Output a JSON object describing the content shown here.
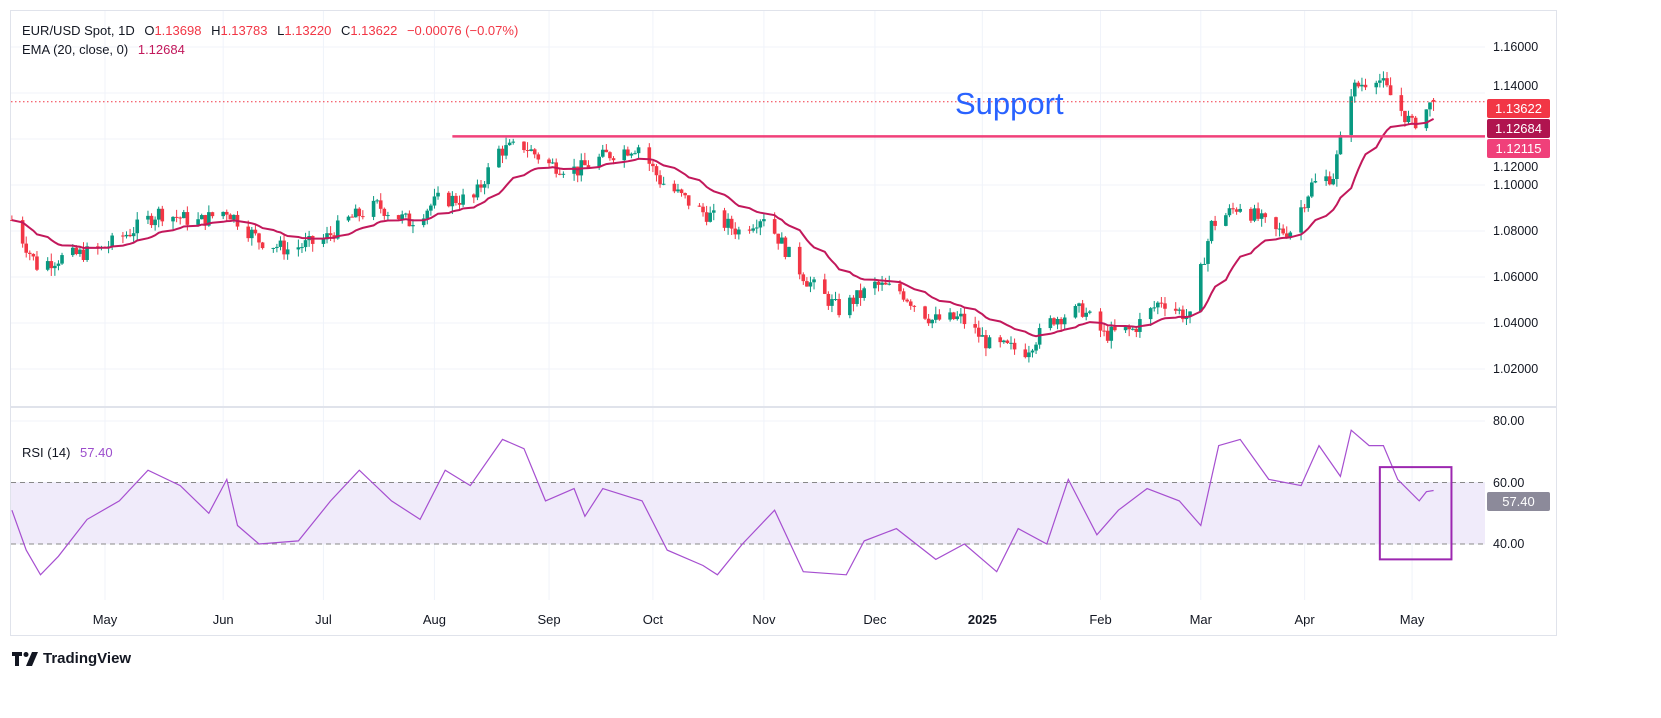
{
  "header": {
    "symbol": "EUR/USD Spot, 1D",
    "open_key": "O",
    "open": "1.13698",
    "high_key": "H",
    "high": "1.13783",
    "low_key": "L",
    "low": "1.13220",
    "close_key": "C",
    "close": "1.13622",
    "change": "−0.00076 (−0.07%)",
    "ema_label": "EMA (20, close, 0)",
    "ema_value": "1.12684",
    "rsi_label": "RSI (14)",
    "rsi_value": "57.40"
  },
  "annotation": {
    "support_text": "Support",
    "support_level": "1.12115"
  },
  "price_tags": {
    "last": "1.13622",
    "ema": "1.12684",
    "support": "1.12115"
  },
  "rsi_tags": {
    "value": "57.40"
  },
  "branding": {
    "logo": "TradingView"
  },
  "colors": {
    "up": "#089981",
    "down": "#f23645",
    "ema": "#c2185b",
    "support": "#f0407a",
    "rsi": "#a64fd0",
    "rsi_band": "#f0ebfa",
    "highlight_box": "#9c27b0",
    "support_text": "#2962ff"
  },
  "chart_data": [
    {
      "type": "candlestick",
      "title": "EUR/USD Spot, 1D",
      "ylim": [
        1.006,
        1.172
      ],
      "y_ticks": [
        "1.16000",
        "1.14000",
        "1.12000",
        "1.10000",
        "1.08000",
        "1.06000",
        "1.04000",
        "1.02000"
      ],
      "x_ticks": [
        {
          "date": "2024-05-01",
          "label": "May"
        },
        {
          "date": "2024-06-03",
          "label": "Jun"
        },
        {
          "date": "2024-07-01",
          "label": "Jul"
        },
        {
          "date": "2024-08-01",
          "label": "Aug"
        },
        {
          "date": "2024-09-02",
          "label": "Sep"
        },
        {
          "date": "2024-10-01",
          "label": "Oct"
        },
        {
          "date": "2024-11-01",
          "label": "Nov"
        },
        {
          "date": "2024-12-02",
          "label": "Dec"
        },
        {
          "date": "2025-01-01",
          "label": "2025"
        },
        {
          "date": "2025-02-03",
          "label": "Feb"
        },
        {
          "date": "2025-03-03",
          "label": "Mar"
        },
        {
          "date": "2025-04-01",
          "label": "Apr"
        },
        {
          "date": "2025-05-01",
          "label": "May"
        }
      ],
      "grid": true,
      "approx_closes": [
        [
          "2024-04-05",
          1.0848
        ],
        [
          "2024-04-12",
          1.065
        ],
        [
          "2024-04-18",
          1.068
        ],
        [
          "2024-04-30",
          1.072
        ],
        [
          "2024-05-08",
          1.0796
        ],
        [
          "2024-05-16",
          1.088
        ],
        [
          "2024-05-27",
          1.084
        ],
        [
          "2024-06-04",
          1.089
        ],
        [
          "2024-06-13",
          1.076
        ],
        [
          "2024-06-21",
          1.072
        ],
        [
          "2024-07-01",
          1.076
        ],
        [
          "2024-07-08",
          1.085
        ],
        [
          "2024-07-16",
          1.091
        ],
        [
          "2024-07-25",
          1.084
        ],
        [
          "2024-08-02",
          1.0935
        ],
        [
          "2024-08-12",
          1.094
        ],
        [
          "2024-08-19",
          1.115
        ],
        [
          "2024-08-26",
          1.117
        ],
        [
          "2024-09-02",
          1.109
        ],
        [
          "2024-09-10",
          1.1065
        ],
        [
          "2024-09-18",
          1.113
        ],
        [
          "2024-09-27",
          1.117
        ],
        [
          "2024-10-03",
          1.102
        ],
        [
          "2024-10-14",
          1.089
        ],
        [
          "2024-10-25",
          1.08
        ],
        [
          "2024-11-01",
          1.087
        ],
        [
          "2024-11-08",
          1.0696
        ],
        [
          "2024-11-13",
          1.0587
        ],
        [
          "2024-11-22",
          1.0457
        ],
        [
          "2024-12-02",
          1.0565
        ],
        [
          "2024-12-09",
          1.054
        ],
        [
          "2024-12-18",
          1.0413
        ],
        [
          "2024-12-26",
          1.042
        ],
        [
          "2025-01-03",
          1.0304
        ],
        [
          "2025-01-13",
          1.028
        ],
        [
          "2025-01-21",
          1.042
        ],
        [
          "2025-01-29",
          1.0457
        ],
        [
          "2025-02-04",
          1.0348
        ],
        [
          "2025-02-12",
          1.037
        ],
        [
          "2025-02-20",
          1.05
        ],
        [
          "2025-02-28",
          1.042
        ],
        [
          "2025-03-06",
          1.0826
        ],
        [
          "2025-03-14",
          1.0913
        ],
        [
          "2025-03-24",
          1.0796
        ],
        [
          "2025-03-28",
          1.0804
        ],
        [
          "2025-04-03",
          1.1
        ],
        [
          "2025-04-09",
          1.1043
        ],
        [
          "2025-04-14",
          1.1413
        ],
        [
          "2025-04-21",
          1.1478
        ],
        [
          "2025-04-25",
          1.139
        ],
        [
          "2025-05-01",
          1.126
        ],
        [
          "2025-05-07",
          1.13622
        ]
      ],
      "last_ohlc": {
        "open": 1.13698,
        "high": 1.13783,
        "low": 1.1322,
        "close": 1.13622
      },
      "ema": {
        "period": 20,
        "last": 1.12684
      },
      "support_line": {
        "value": 1.12115,
        "from": "2024-08-06",
        "to": "2025-05-07"
      },
      "last_price_line": 1.13622
    },
    {
      "type": "line",
      "title": "RSI (14)",
      "ylim": [
        20,
        84
      ],
      "y_ticks": [
        "80.00",
        "60.00",
        "40.00"
      ],
      "band": [
        40,
        60
      ],
      "series": [
        {
          "name": "RSI (14)",
          "values": [
            [
              "2024-04-05",
              51
            ],
            [
              "2024-04-09",
              38
            ],
            [
              "2024-04-13",
              30
            ],
            [
              "2024-04-18",
              36
            ],
            [
              "2024-04-26",
              48
            ],
            [
              "2024-05-05",
              54
            ],
            [
              "2024-05-13",
              64
            ],
            [
              "2024-05-22",
              59
            ],
            [
              "2024-05-30",
              50
            ],
            [
              "2024-06-04",
              61
            ],
            [
              "2024-06-07",
              46
            ],
            [
              "2024-06-13",
              40
            ],
            [
              "2024-06-24",
              41
            ],
            [
              "2024-07-03",
              54
            ],
            [
              "2024-07-11",
              64
            ],
            [
              "2024-07-20",
              54
            ],
            [
              "2024-07-28",
              48
            ],
            [
              "2024-08-04",
              64
            ],
            [
              "2024-08-11",
              59
            ],
            [
              "2024-08-20",
              74
            ],
            [
              "2024-08-26",
              71
            ],
            [
              "2024-09-01",
              54
            ],
            [
              "2024-09-09",
              58
            ],
            [
              "2024-09-12",
              49
            ],
            [
              "2024-09-17",
              58
            ],
            [
              "2024-09-28",
              54
            ],
            [
              "2024-10-05",
              38
            ],
            [
              "2024-10-15",
              33
            ],
            [
              "2024-10-19",
              30
            ],
            [
              "2024-10-26",
              40
            ],
            [
              "2024-11-04",
              51
            ],
            [
              "2024-11-12",
              31
            ],
            [
              "2024-11-24",
              30
            ],
            [
              "2024-11-29",
              41
            ],
            [
              "2024-12-08",
              45
            ],
            [
              "2024-12-19",
              35
            ],
            [
              "2024-12-27",
              40
            ],
            [
              "2025-01-05",
              31
            ],
            [
              "2025-01-11",
              45
            ],
            [
              "2025-01-19",
              40
            ],
            [
              "2025-01-25",
              61
            ],
            [
              "2025-02-02",
              43
            ],
            [
              "2025-02-08",
              51
            ],
            [
              "2025-02-16",
              58
            ],
            [
              "2025-02-25",
              54
            ],
            [
              "2025-03-03",
              46
            ],
            [
              "2025-03-08",
              72
            ],
            [
              "2025-03-14",
              74
            ],
            [
              "2025-03-22",
              61
            ],
            [
              "2025-03-31",
              59
            ],
            [
              "2025-04-05",
              72
            ],
            [
              "2025-04-11",
              62
            ],
            [
              "2025-04-14",
              77
            ],
            [
              "2025-04-19",
              72
            ],
            [
              "2025-04-23",
              72
            ],
            [
              "2025-04-27",
              61
            ],
            [
              "2025-05-03",
              54
            ],
            [
              "2025-05-05",
              57
            ],
            [
              "2025-05-07",
              57.4
            ]
          ]
        }
      ],
      "highlight_box": {
        "from": "2025-04-22",
        "to": "2025-05-12",
        "rsi_top": 65,
        "rsi_bottom": 35
      }
    }
  ]
}
